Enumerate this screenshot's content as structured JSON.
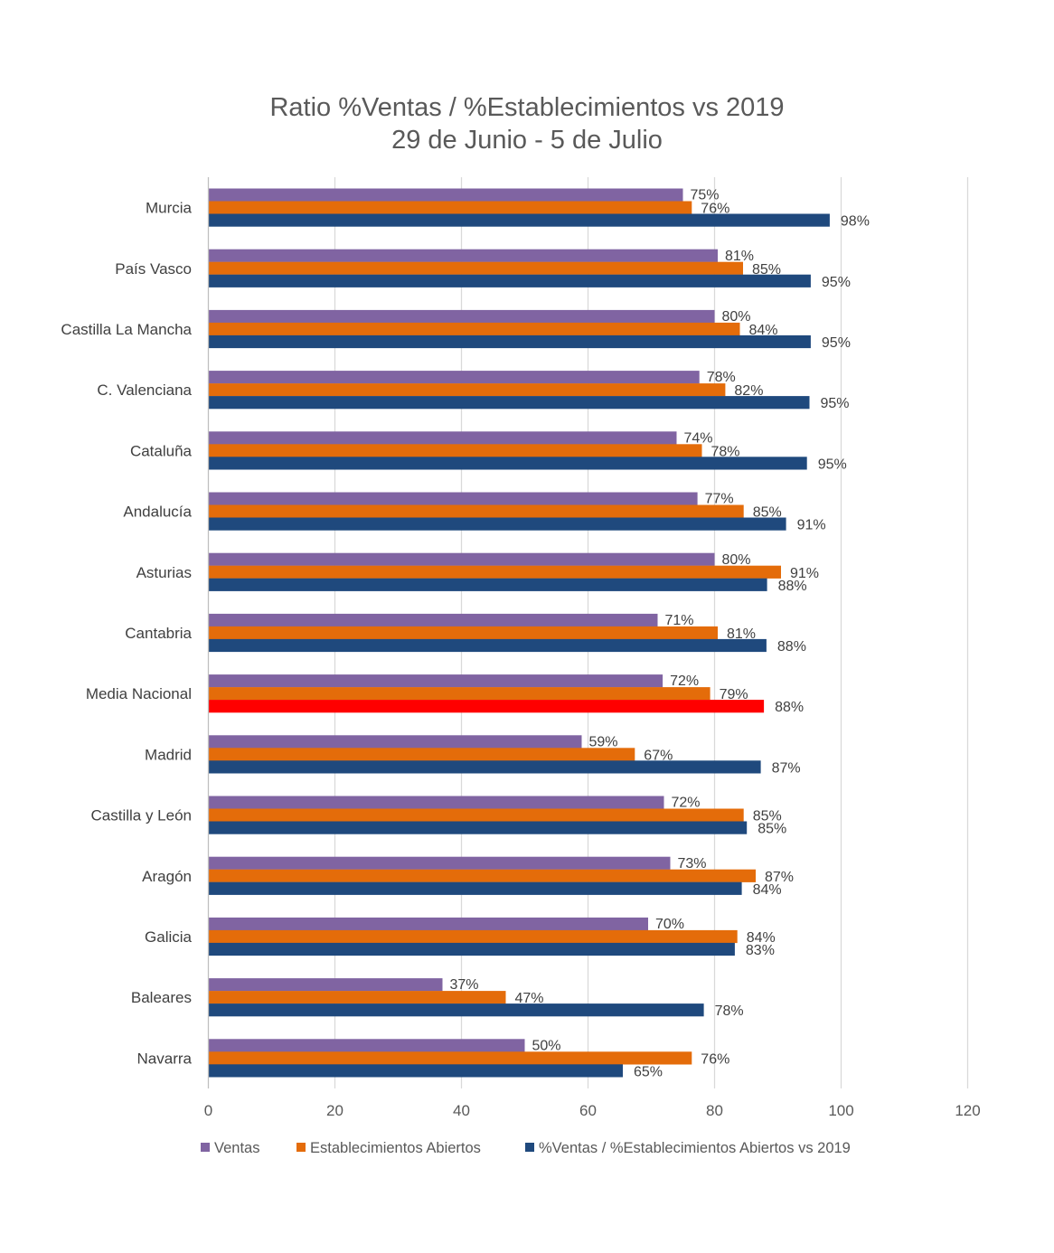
{
  "chart_data": {
    "type": "bar",
    "orientation": "horizontal",
    "title": "Ratio %Ventas / %Establecimientos  vs 2019",
    "subtitle": "29 de Junio - 5 de Julio",
    "categories": [
      "Murcia",
      "País Vasco",
      "Castilla La Mancha",
      "C. Valenciana",
      "Cataluña",
      "Andalucía",
      "Asturias",
      "Cantabria",
      "Media Nacional",
      "Madrid",
      "Castilla y León",
      "Aragón",
      "Galicia",
      "Baleares",
      "Navarra"
    ],
    "series": [
      {
        "name": "Ventas",
        "color": "#8064a2",
        "values": [
          75,
          80.5,
          80,
          77.6,
          74,
          77.3,
          80,
          71,
          71.8,
          59,
          72,
          73,
          69.5,
          37,
          50
        ],
        "labels": [
          "75%",
          "81%",
          "80%",
          "78%",
          "74%",
          "77%",
          "80%",
          "71%",
          "72%",
          "59%",
          "72%",
          "73%",
          "70%",
          "37%",
          "50%"
        ]
      },
      {
        "name": "Establecimientos Abiertos",
        "color": "#e46c0a",
        "values": [
          76.4,
          84.5,
          84,
          81.7,
          78,
          84.6,
          90.5,
          80.5,
          79.3,
          67.4,
          84.6,
          86.5,
          83.6,
          47,
          76.4
        ],
        "labels": [
          "76%",
          "85%",
          "84%",
          "82%",
          "78%",
          "85%",
          "91%",
          "81%",
          "79%",
          "67%",
          "85%",
          "87%",
          "84%",
          "47%",
          "76%"
        ]
      },
      {
        "name": "%Ventas / %Establecimientos Abiertos vs 2019",
        "color": "#1f497d",
        "values": [
          98.2,
          95.2,
          95.2,
          95,
          94.6,
          91.3,
          88.3,
          88.2,
          87.8,
          87.3,
          85.1,
          84.3,
          83.2,
          78.3,
          65.5
        ],
        "labels": [
          "98%",
          "95%",
          "95%",
          "95%",
          "95%",
          "91%",
          "88%",
          "88%",
          "88%",
          "87%",
          "85%",
          "84%",
          "83%",
          "78%",
          "65%"
        ]
      }
    ],
    "highlight": {
      "category": "Media Nacional",
      "series": "%Ventas / %Establecimientos Abiertos vs 2019",
      "color": "#ff0000"
    },
    "xlim": [
      0,
      120
    ],
    "xticks": [
      "0",
      "20",
      "40",
      "60",
      "80",
      "100",
      "120"
    ],
    "grid": true,
    "legend": "bottom"
  }
}
